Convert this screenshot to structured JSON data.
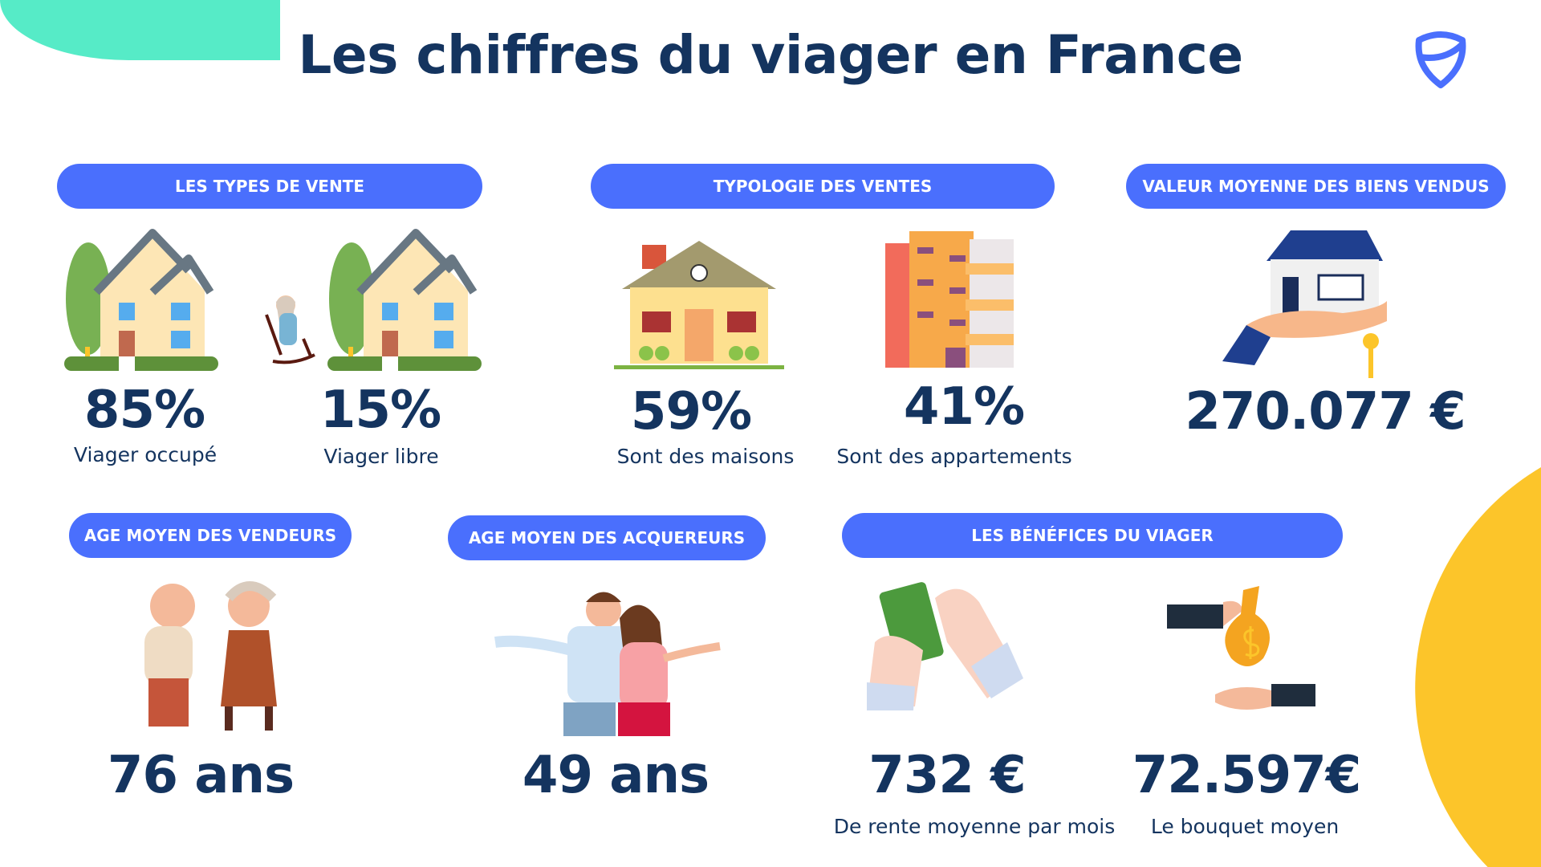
{
  "title": "Les chiffres du viager en France",
  "logo": "shield-logo",
  "colors": {
    "accent": "#4a6ffd",
    "navy": "#14345f",
    "teal": "#56ebc7",
    "yellow": "#fcc52a"
  },
  "sections": {
    "types": {
      "label": "LES TYPES DE VENTE",
      "items": [
        {
          "value": "85%",
          "caption": "Viager occupé"
        },
        {
          "value": "15%",
          "caption": "Viager libre"
        }
      ]
    },
    "typologie": {
      "label": "TYPOLOGIE DES VENTES",
      "items": [
        {
          "value": "59%",
          "caption": "Sont des maisons"
        },
        {
          "value": "41%",
          "caption": "Sont des appartements"
        }
      ]
    },
    "valeur": {
      "label": "VALEUR MOYENNE DES BIENS VENDUS",
      "value": "270.077 €"
    },
    "vendeurs": {
      "label": "AGE MOYEN DES VENDEURS",
      "value": "76 ans"
    },
    "acquereurs": {
      "label": "AGE MOYEN DES ACQUEREURS",
      "value": "49 ans"
    },
    "benefices": {
      "label": "LES BÉNÉFICES DU VIAGER",
      "items": [
        {
          "value": "732 €",
          "caption": "De rente moyenne par mois"
        },
        {
          "value": "72.597€",
          "caption": "Le bouquet moyen"
        }
      ]
    }
  }
}
